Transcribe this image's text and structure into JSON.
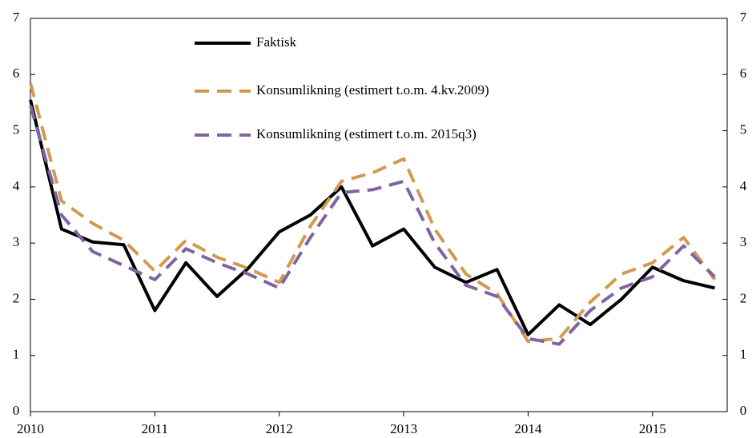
{
  "chart_data": {
    "type": "line",
    "x": [
      2010,
      2010.25,
      2010.5,
      2010.75,
      2011,
      2011.25,
      2011.5,
      2011.75,
      2012,
      2012.25,
      2012.5,
      2012.75,
      2013,
      2013.25,
      2013.5,
      2013.75,
      2014,
      2014.25,
      2014.5,
      2014.75,
      2015,
      2015.25,
      2015.5
    ],
    "series": [
      {
        "name": "Faktisk",
        "color": "#000000",
        "dashed": false,
        "values": [
          5.55,
          3.25,
          3.02,
          2.97,
          1.8,
          2.65,
          2.05,
          2.55,
          3.2,
          3.5,
          4.0,
          2.95,
          3.25,
          2.57,
          2.3,
          2.53,
          1.37,
          1.9,
          1.55,
          2.0,
          2.57,
          2.33,
          2.2
        ]
      },
      {
        "name": "Konsumlikning (estimert t.o.m. 4.kv.2009)",
        "color": "#d09a50",
        "dashed": true,
        "values": [
          5.85,
          3.75,
          3.35,
          3.05,
          2.5,
          3.05,
          2.75,
          2.55,
          2.3,
          3.3,
          4.1,
          4.25,
          4.5,
          3.25,
          2.45,
          2.1,
          1.25,
          1.3,
          1.95,
          2.45,
          2.65,
          3.1,
          2.35
        ]
      },
      {
        "name": "Konsumlikning (estimert t.o.m. 2015q3)",
        "color": "#8064a2",
        "dashed": true,
        "values": [
          5.45,
          3.5,
          2.85,
          2.6,
          2.35,
          2.9,
          2.65,
          2.45,
          2.2,
          3.1,
          3.9,
          3.95,
          4.1,
          3.0,
          2.25,
          2.05,
          1.3,
          1.2,
          1.8,
          2.2,
          2.4,
          2.95,
          2.4
        ]
      }
    ],
    "xlim": [
      2010,
      2015.6
    ],
    "xticks": [
      2010,
      2011,
      2012,
      2013,
      2014,
      2015
    ],
    "ylim": [
      0,
      7
    ],
    "yticks": [
      0,
      1,
      2,
      3,
      4,
      5,
      6,
      7
    ],
    "y2lim": [
      0,
      7
    ],
    "y2ticks": [
      0,
      1,
      2,
      3,
      4,
      5,
      6,
      7
    ]
  }
}
